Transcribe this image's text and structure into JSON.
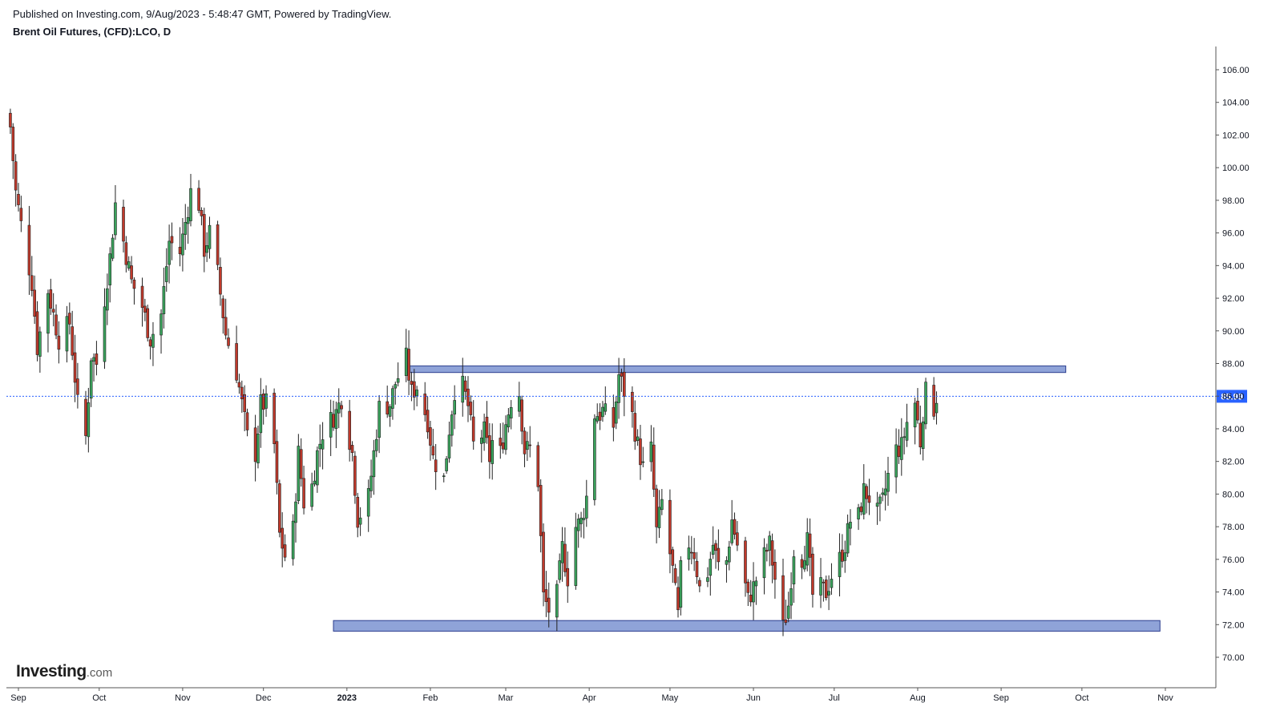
{
  "header": {
    "published": "Published on Investing.com, 9/Aug/2023 - 5:48:47 GMT, Powered by TradingView.",
    "symbol": "Brent Oil Futures, (CFD):LCO, D"
  },
  "logo": {
    "main": "Investing",
    "suffix": ".com"
  },
  "colors": {
    "up": "#3aa35c",
    "down": "#c0392b",
    "wick": "#222222",
    "zone_fill": "#8fa3d8",
    "zone_border": "#2c3e8f",
    "price_line": "#2962ff",
    "price_label_bg": "#2962ff",
    "axis": "#555555"
  },
  "chart_data": {
    "type": "candlestick",
    "ylim": [
      69,
      108
    ],
    "yticks": [
      "70.00",
      "72.00",
      "74.00",
      "76.00",
      "78.00",
      "80.00",
      "82.00",
      "84.00",
      "86.00",
      "88.00",
      "90.00",
      "92.00",
      "94.00",
      "96.00",
      "98.00",
      "100.00",
      "102.00",
      "104.00",
      "106.00"
    ],
    "xticks": [
      {
        "label": "Sep",
        "date": "2022-09-01",
        "bold": false
      },
      {
        "label": "Oct",
        "date": "2022-10-01",
        "bold": false
      },
      {
        "label": "Nov",
        "date": "2022-11-01",
        "bold": false
      },
      {
        "label": "Dec",
        "date": "2022-12-01",
        "bold": false
      },
      {
        "label": "2023",
        "date": "2023-01-01",
        "bold": true
      },
      {
        "label": "Feb",
        "date": "2023-02-01",
        "bold": false
      },
      {
        "label": "Mar",
        "date": "2023-03-01",
        "bold": false
      },
      {
        "label": "Apr",
        "date": "2023-04-01",
        "bold": false
      },
      {
        "label": "May",
        "date": "2023-05-01",
        "bold": false
      },
      {
        "label": "Jun",
        "date": "2023-06-01",
        "bold": false
      },
      {
        "label": "Jul",
        "date": "2023-07-01",
        "bold": false
      },
      {
        "label": "Aug",
        "date": "2023-08-01",
        "bold": false
      },
      {
        "label": "Sep",
        "date": "2023-09-01",
        "bold": false
      },
      {
        "label": "Oct",
        "date": "2023-10-01",
        "bold": false
      },
      {
        "label": "Nov",
        "date": "2023-11-01",
        "bold": false
      }
    ],
    "last_price": 85.99,
    "last_price_label": "85.99",
    "zones": [
      {
        "start": "2023-01-23",
        "end": "2023-09-25",
        "top": 87.85,
        "bottom": 87.45
      },
      {
        "start": "2022-12-27",
        "end": "2023-10-30",
        "top": 72.25,
        "bottom": 71.6
      }
    ],
    "anchors": [
      [
        "2022-08-29",
        102.5
      ],
      [
        "2022-08-31",
        98.5
      ],
      [
        "2022-09-02",
        96.5
      ],
      [
        "2022-09-06",
        93.0
      ],
      [
        "2022-09-08",
        89.0
      ],
      [
        "2022-09-12",
        92.5
      ],
      [
        "2022-09-14",
        91.0
      ],
      [
        "2022-09-16",
        89.5
      ],
      [
        "2022-09-20",
        90.5
      ],
      [
        "2022-09-23",
        85.5
      ],
      [
        "2022-09-26",
        83.5
      ],
      [
        "2022-09-28",
        88.5
      ],
      [
        "2022-09-30",
        88.0
      ],
      [
        "2022-10-03",
        92.0
      ],
      [
        "2022-10-05",
        94.5
      ],
      [
        "2022-10-07",
        97.8
      ],
      [
        "2022-10-10",
        95.5
      ],
      [
        "2022-10-13",
        93.0
      ],
      [
        "2022-10-17",
        91.5
      ],
      [
        "2022-10-20",
        89.5
      ],
      [
        "2022-10-24",
        91.0
      ],
      [
        "2022-10-27",
        95.5
      ],
      [
        "2022-10-31",
        94.8
      ],
      [
        "2022-11-04",
        98.5
      ],
      [
        "2022-11-07",
        97.8
      ],
      [
        "2022-11-09",
        95.0
      ],
      [
        "2022-11-11",
        96.0
      ],
      [
        "2022-11-14",
        93.5
      ],
      [
        "2022-11-17",
        89.8
      ],
      [
        "2022-11-21",
        87.5
      ],
      [
        "2022-11-23",
        85.5
      ],
      [
        "2022-11-25",
        83.5
      ],
      [
        "2022-11-28",
        82.5
      ],
      [
        "2022-11-30",
        85.5
      ],
      [
        "2022-12-02",
        85.5
      ],
      [
        "2022-12-05",
        83.0
      ],
      [
        "2022-12-07",
        77.5
      ],
      [
        "2022-12-09",
        76.2
      ],
      [
        "2022-12-12",
        77.8
      ],
      [
        "2022-12-14",
        82.5
      ],
      [
        "2022-12-16",
        79.5
      ],
      [
        "2022-12-19",
        80.5
      ],
      [
        "2022-12-21",
        82.5
      ],
      [
        "2022-12-23",
        83.8
      ],
      [
        "2022-12-28",
        85.0
      ],
      [
        "2022-12-30",
        85.9
      ],
      [
        "2023-01-03",
        82.5
      ],
      [
        "2023-01-05",
        78.5
      ],
      [
        "2023-01-06",
        78.8
      ],
      [
        "2023-01-09",
        79.8
      ],
      [
        "2023-01-11",
        82.5
      ],
      [
        "2023-01-13",
        85.3
      ],
      [
        "2023-01-17",
        85.5
      ],
      [
        "2023-01-19",
        86.8
      ],
      [
        "2023-01-23",
        88.3
      ],
      [
        "2023-01-25",
        86.2
      ],
      [
        "2023-01-27",
        86.6
      ],
      [
        "2023-01-31",
        84.5
      ],
      [
        "2023-02-02",
        82.2
      ],
      [
        "2023-02-06",
        80.9
      ],
      [
        "2023-02-08",
        84.0
      ],
      [
        "2023-02-10",
        86.4
      ],
      [
        "2023-02-13",
        86.6
      ],
      [
        "2023-02-15",
        85.4
      ],
      [
        "2023-02-17",
        83.0
      ],
      [
        "2023-02-21",
        83.8
      ],
      [
        "2023-02-23",
        82.2
      ],
      [
        "2023-02-24",
        83.2
      ],
      [
        "2023-02-27",
        82.5
      ],
      [
        "2023-03-01",
        84.3
      ],
      [
        "2023-03-03",
        85.8
      ],
      [
        "2023-03-06",
        86.2
      ],
      [
        "2023-03-08",
        82.7
      ],
      [
        "2023-03-10",
        82.8
      ],
      [
        "2023-03-13",
        80.8
      ],
      [
        "2023-03-15",
        73.7
      ],
      [
        "2023-03-17",
        72.9
      ],
      [
        "2023-03-20",
        73.8
      ],
      [
        "2023-03-22",
        76.7
      ],
      [
        "2023-03-24",
        74.9
      ],
      [
        "2023-03-27",
        78.0
      ],
      [
        "2023-03-29",
        78.3
      ],
      [
        "2023-03-31",
        79.8
      ],
      [
        "2023-04-03",
        84.9
      ],
      [
        "2023-04-05",
        84.9
      ],
      [
        "2023-04-06",
        85.1
      ],
      [
        "2023-04-10",
        84.2
      ],
      [
        "2023-04-12",
        87.3
      ],
      [
        "2023-04-14",
        86.3
      ],
      [
        "2023-04-17",
        84.8
      ],
      [
        "2023-04-19",
        83.0
      ],
      [
        "2023-04-21",
        81.6
      ],
      [
        "2023-04-24",
        82.7
      ],
      [
        "2023-04-26",
        77.7
      ],
      [
        "2023-04-28",
        79.5
      ],
      [
        "2023-05-02",
        75.3
      ],
      [
        "2023-05-04",
        72.5
      ],
      [
        "2023-05-05",
        75.3
      ],
      [
        "2023-05-08",
        77.0
      ],
      [
        "2023-05-10",
        76.4
      ],
      [
        "2023-05-12",
        74.2
      ],
      [
        "2023-05-15",
        75.2
      ],
      [
        "2023-05-17",
        76.9
      ],
      [
        "2023-05-19",
        75.6
      ],
      [
        "2023-05-22",
        75.9
      ],
      [
        "2023-05-24",
        78.4
      ],
      [
        "2023-05-26",
        76.9
      ],
      [
        "2023-05-30",
        73.5
      ],
      [
        "2023-06-01",
        74.3
      ],
      [
        "2023-06-05",
        76.2
      ],
      [
        "2023-06-07",
        76.9
      ],
      [
        "2023-06-09",
        74.8
      ],
      [
        "2023-06-12",
        71.8
      ],
      [
        "2023-06-14",
        73.2
      ],
      [
        "2023-06-16",
        76.6
      ],
      [
        "2023-06-19",
        76.1
      ],
      [
        "2023-06-21",
        77.1
      ],
      [
        "2023-06-23",
        73.8
      ],
      [
        "2023-06-26",
        74.2
      ],
      [
        "2023-06-28",
        74.0
      ],
      [
        "2023-06-30",
        75.0
      ],
      [
        "2023-07-03",
        76.0
      ],
      [
        "2023-07-05",
        76.9
      ],
      [
        "2023-07-07",
        78.4
      ],
      [
        "2023-07-10",
        78.6
      ],
      [
        "2023-07-12",
        80.2
      ],
      [
        "2023-07-14",
        79.8
      ],
      [
        "2023-07-17",
        78.8
      ],
      [
        "2023-07-19",
        79.5
      ],
      [
        "2023-07-21",
        81.1
      ],
      [
        "2023-07-24",
        82.7
      ],
      [
        "2023-07-26",
        82.9
      ],
      [
        "2023-07-28",
        84.4
      ],
      [
        "2023-07-31",
        85.6
      ],
      [
        "2023-08-02",
        83.2
      ],
      [
        "2023-08-03",
        85.1
      ],
      [
        "2023-08-04",
        86.2
      ],
      [
        "2023-08-07",
        85.3
      ],
      [
        "2023-08-08",
        86.0
      ]
    ]
  }
}
